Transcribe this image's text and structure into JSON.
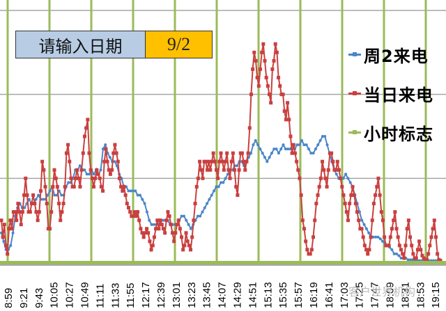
{
  "input_box": {
    "label": "请输入日期",
    "value": "9/2",
    "label_bg": "#B8CCE4",
    "value_bg": "#FFC000"
  },
  "legend": {
    "items": [
      {
        "label": "周2来电",
        "color": "#4A86C8"
      },
      {
        "label": "当日来电",
        "color": "#C9403F"
      },
      {
        "label": "小时标志",
        "color": "#9BBB59"
      }
    ]
  },
  "watermark": "客户世界机构",
  "chart_data": {
    "type": "line",
    "title": "",
    "xlabel": "",
    "ylabel": "",
    "ylim": [
      0,
      30
    ],
    "grid": "horizontal",
    "legend_position": "right",
    "x_tick_labels": [
      "8:59",
      "9:21",
      "9:43",
      "10:05",
      "10:27",
      "10:49",
      "11:11",
      "11:33",
      "11:55",
      "12:17",
      "12:39",
      "13:01",
      "13:23",
      "13:45",
      "14:07",
      "14:29",
      "14:51",
      "15:13",
      "15:35",
      "15:57",
      "16:19",
      "16:41",
      "17:03",
      "17:25",
      "17:47",
      "18:09",
      "18:31",
      "18:53",
      "19:15"
    ],
    "hour_markers": [
      "9:00",
      "10:00",
      "11:00",
      "12:00",
      "13:00",
      "14:00",
      "15:00",
      "16:00",
      "17:00",
      "18:00",
      "19:00"
    ],
    "series": [
      {
        "name": "周2来电",
        "color": "#4A86C8",
        "values": [
          3.5,
          2.5,
          1.5,
          1.5,
          2,
          3.5,
          5.5,
          6.5,
          7,
          6.5,
          6.5,
          7,
          7.5,
          7,
          7,
          7.5,
          8,
          7.5,
          7.5,
          7.5,
          8,
          8.5,
          9,
          8,
          8,
          8.5,
          8,
          8,
          9,
          9.5,
          9.5,
          10,
          11,
          11,
          11.5,
          11,
          11,
          10.5,
          10.5,
          11,
          10.5,
          11,
          10.5,
          11,
          13.5,
          14,
          13,
          12.5,
          12,
          12,
          11.5,
          10.5,
          10,
          9,
          9,
          8.5,
          8.5,
          8.5,
          8.5,
          8,
          8,
          7.5,
          7,
          6,
          5,
          4.5,
          4.5,
          4.5,
          4.5,
          5,
          5,
          5,
          5,
          4.5,
          4.5,
          4.5,
          4.5,
          5,
          5.5,
          5.5,
          5,
          4.5,
          4,
          4.5,
          5,
          5.5,
          5.5,
          6,
          6.5,
          7,
          7.5,
          8,
          8.5,
          9,
          9,
          9.5,
          9.5,
          10,
          10.5,
          11,
          11,
          11.5,
          11.5,
          12,
          12,
          11.5,
          12,
          12.5,
          13,
          14,
          14.5,
          14,
          13.5,
          13,
          12.5,
          12,
          12.5,
          13,
          13.5,
          13.5,
          13,
          13.5,
          14,
          13.5,
          13.5,
          13.5,
          14,
          13.5,
          14,
          14,
          14.5,
          14,
          14,
          13.5,
          13,
          13,
          13.5,
          14,
          14.5,
          15,
          15,
          14,
          13,
          12,
          11,
          10.5,
          10,
          10,
          10,
          10.5,
          10,
          9.5,
          9,
          8,
          7,
          6,
          5,
          4.5,
          4,
          3.5,
          3,
          3,
          3,
          3,
          2.8,
          2.5,
          2.3,
          2,
          1.8,
          1.5,
          1,
          1,
          0.8,
          0.5,
          0.5,
          0.5,
          0.3,
          0.3,
          0.3,
          0.2,
          0.2,
          0.2,
          0.2,
          0.2,
          0.2,
          0.2,
          0.2,
          0.2,
          0.2,
          0.2,
          0.2
        ]
      },
      {
        "name": "当日来电",
        "color": "#C9403F",
        "values": [
          5,
          3,
          4.5,
          2,
          1,
          4,
          5,
          4,
          6,
          6,
          5,
          7,
          6,
          4.5,
          6,
          8,
          10,
          8,
          6,
          6,
          7,
          8,
          7,
          6,
          5,
          6,
          8.5,
          12,
          11,
          9,
          7,
          4,
          4,
          6,
          9,
          11,
          10,
          9,
          7,
          5,
          6,
          7,
          9,
          13,
          14,
          12,
          10,
          9,
          9,
          10,
          11,
          10,
          9,
          11,
          13,
          15,
          16,
          17,
          13,
          11,
          10,
          9,
          10,
          11,
          10.5,
          10,
          9,
          8.5,
          12,
          13.5,
          12,
          11,
          10.5,
          11,
          13,
          14,
          13,
          12,
          10,
          9,
          8.5,
          9,
          8,
          7,
          6.5,
          6,
          5.5,
          5.5,
          6,
          5.5,
          6,
          5,
          4,
          3.5,
          3,
          3.5,
          4,
          3.5,
          2.5,
          1.5,
          2,
          3,
          4,
          5,
          4,
          5,
          4.5,
          4,
          3.5,
          5,
          6,
          5.5,
          4.5,
          3.5,
          2.5,
          3.5,
          4.5,
          5,
          4,
          3,
          1.5,
          2,
          3.5,
          2.5,
          2,
          1.5,
          3,
          5,
          7,
          9,
          10,
          12,
          11,
          10,
          12,
          12,
          11,
          12,
          11,
          12,
          13,
          12,
          11,
          10,
          12,
          13,
          12,
          11,
          12,
          13,
          11,
          10,
          12,
          13,
          11,
          9,
          8,
          11,
          13,
          13,
          12,
          11,
          12,
          13,
          16,
          20,
          23,
          25,
          24,
          22,
          21,
          23,
          25,
          26,
          24,
          22,
          21,
          20,
          19,
          23,
          24,
          26,
          25,
          22,
          21,
          20,
          20,
          18,
          17,
          19,
          17,
          15,
          13,
          14,
          13,
          12,
          11,
          10,
          8,
          5,
          4,
          2.5,
          1.5,
          1,
          1,
          1.5,
          3,
          5,
          7,
          8,
          9,
          10,
          12,
          11,
          10,
          9,
          11,
          13,
          13,
          12,
          11,
          11,
          12,
          11,
          10,
          9,
          8,
          7,
          6,
          5,
          7,
          8,
          9,
          8,
          7,
          6,
          5,
          4,
          4,
          3,
          2,
          1.5,
          1,
          1.5,
          3,
          5,
          7,
          8,
          9,
          10,
          8,
          6,
          5,
          3,
          2,
          2,
          2,
          3,
          4,
          5,
          6,
          4,
          3,
          2,
          1.5,
          1,
          0.5,
          2,
          4,
          5,
          3,
          2,
          1,
          0.5,
          0.5,
          1.5,
          2.5,
          1.5,
          0.8,
          0.5,
          0.3,
          0.3,
          1,
          2,
          3,
          4,
          5,
          3,
          1,
          0.3,
          0.2
        ]
      },
      {
        "name": "小时标志",
        "color": "#9BBB59",
        "type": "vertical-markers"
      }
    ]
  }
}
